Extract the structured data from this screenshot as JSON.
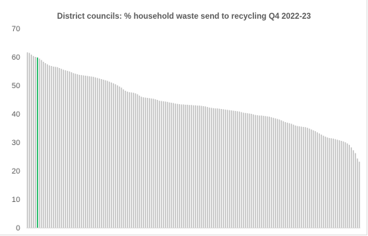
{
  "chart_data": {
    "type": "bar",
    "title": "District councils: % household waste send to recycling Q4 2022-23",
    "xlabel": "",
    "ylabel": "",
    "ylim": [
      0,
      70
    ],
    "y_ticks": [
      "0",
      "10",
      "20",
      "30",
      "40",
      "50",
      "60",
      "70"
    ],
    "grid": false,
    "legend": "none",
    "colors": {
      "bar": "#bfbfbf",
      "highlight": "#00b050",
      "axis": "#d9d9d9",
      "text": "#595959"
    },
    "highlight_index": 5,
    "values": [
      61.6,
      61.4,
      60.8,
      60.3,
      60.0,
      59.8,
      59.4,
      58.9,
      58.3,
      57.8,
      57.4,
      57.0,
      56.8,
      56.6,
      56.5,
      56.4,
      56.1,
      55.8,
      55.5,
      55.3,
      55.1,
      54.9,
      54.6,
      54.3,
      54.1,
      53.9,
      53.7,
      53.6,
      53.5,
      53.4,
      53.3,
      53.2,
      53.1,
      53.0,
      52.8,
      52.6,
      52.4,
      52.2,
      52.0,
      51.8,
      51.6,
      51.3,
      51.0,
      50.7,
      50.4,
      50.0,
      49.6,
      49.2,
      48.6,
      48.1,
      47.8,
      47.6,
      47.5,
      47.4,
      47.2,
      46.9,
      46.4,
      46.0,
      45.8,
      45.7,
      45.6,
      45.5,
      45.4,
      45.3,
      45.1,
      44.9,
      44.6,
      44.5,
      44.4,
      44.3,
      44.2,
      44.0,
      43.9,
      43.8,
      43.6,
      43.5,
      43.4,
      43.3,
      43.3,
      43.2,
      43.2,
      43.1,
      43.1,
      43.0,
      43.0,
      42.9,
      42.9,
      42.8,
      42.7,
      42.6,
      42.4,
      42.2,
      42.1,
      42.0,
      41.9,
      41.9,
      41.8,
      41.7,
      41.6,
      41.5,
      41.4,
      41.3,
      41.2,
      41.1,
      41.0,
      40.9,
      40.8,
      40.6,
      40.4,
      40.3,
      40.2,
      40.1,
      40.0,
      39.8,
      39.6,
      39.5,
      39.4,
      39.4,
      39.3,
      39.2,
      39.1,
      39.0,
      38.8,
      38.6,
      38.4,
      38.2,
      38.0,
      37.7,
      37.4,
      37.1,
      36.9,
      36.7,
      36.5,
      36.2,
      35.9,
      35.7,
      35.6,
      35.5,
      35.4,
      35.3,
      35.1,
      34.8,
      34.5,
      34.2,
      33.9,
      33.5,
      33.1,
      32.7,
      32.3,
      32.0,
      31.7,
      31.5,
      31.4,
      31.3,
      31.1,
      30.9,
      30.7,
      30.5,
      30.3,
      30.0,
      29.6,
      29.1,
      28.2,
      27.2,
      26.2,
      24.3,
      23.2
    ]
  }
}
